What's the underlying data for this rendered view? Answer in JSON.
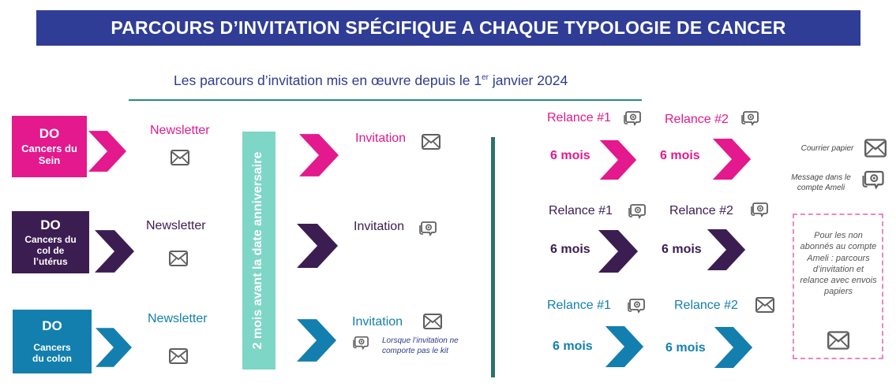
{
  "title": "PARCOURS D’INVITATION SPÉCIFIQUE A CHAQUE TYPOLOGIE DE CANCER",
  "subtitle": {
    "text": "Les parcours d’invitation mis en œuvre depuis le 1",
    "sup": "er",
    "tail": " janvier 2024"
  },
  "vertical_bar": "2 mois avant la date anniversaire",
  "colors": {
    "banner": "#2f3d96",
    "pink": "#e3198d",
    "purple": "#3c1d52",
    "blue": "#137fae",
    "teal": "#7ed6c6",
    "divider": "#2a7466"
  },
  "rows": {
    "sein": {
      "do": "DO",
      "name": "Cancers du Sein",
      "newsletter": "Newsletter",
      "invitation": "Invitation",
      "relance1": "Relance #1",
      "relance2": "Relance #2",
      "delay1": "6 mois",
      "delay2": "6 mois"
    },
    "col": {
      "do": "DO",
      "name": "Cancers du col de l’utérus",
      "newsletter": "Newsletter",
      "invitation": "Invitation",
      "relance1": "Relance #1",
      "relance2": "Relance #2",
      "delay1": "6 mois",
      "delay2": "6 mois"
    },
    "colon": {
      "do": "DO",
      "name": "Cancers du colon",
      "newsletter": "Newsletter",
      "invitation": "Invitation",
      "invitation_note": "Lorsque l’invitation ne comporte pas le kit",
      "relance1": "Relance #1",
      "relance2": "Relance #2",
      "delay1": "6 mois",
      "delay2": "6 mois"
    }
  },
  "legend": {
    "courrier": "Courrier papier",
    "message": "Message dans le compte Ameli",
    "non_abonnes": "Pour les non abonnés au compte Ameli : parcours d’invitation et relance avec envois papiers"
  },
  "icons": {
    "mail": "envelope-icon",
    "message": "message-bubble-icon",
    "chevron": "chevron-right-icon"
  }
}
